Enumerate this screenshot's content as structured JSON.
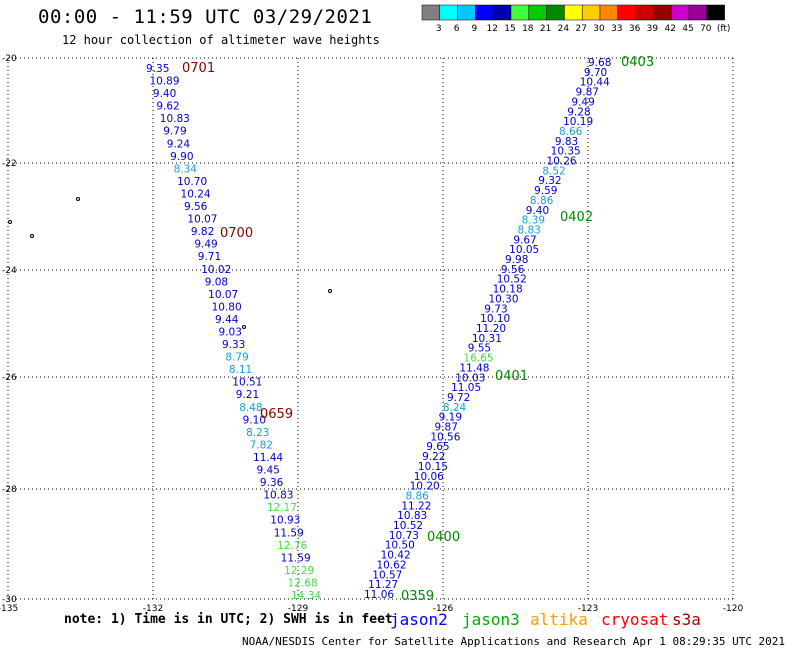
{
  "title": "00:00 - 11:59 UTC 03/29/2021",
  "subtitle": "12 hour collection of altimeter wave heights",
  "note": "note: 1) Time is in UTC; 2) SWH is in feet",
  "credit": "NOAA/NESDIS Center for Satellite Applications and Research    Apr  1 08:29:35 UTC 2021",
  "satellites": [
    {
      "name": "jason2",
      "color": "#0000ff"
    },
    {
      "name": "jason3",
      "color": "#00aa00"
    },
    {
      "name": "altika",
      "color": "#ff9900"
    },
    {
      "name": "cryosat",
      "color": "#ff0000"
    },
    {
      "name": "s3a",
      "color": "#aa0000"
    }
  ],
  "colorbar": {
    "colors": [
      "#808080",
      "#00ffff",
      "#00c8ff",
      "#0000ff",
      "#0000b0",
      "#40ff40",
      "#00cc00",
      "#008800",
      "#ffff00",
      "#ffcc00",
      "#ff8800",
      "#ff0000",
      "#cc0000",
      "#990000",
      "#cc00cc",
      "#990099",
      "#000000"
    ],
    "labels": [
      "3",
      "6",
      "9",
      "12",
      "15",
      "18",
      "21",
      "24",
      "27",
      "30",
      "33",
      "36",
      "39",
      "42",
      "45",
      "70",
      "(ft)"
    ]
  },
  "axes": {
    "lon_ticks": [
      "-135",
      "-132",
      "-129",
      "-126",
      "-123",
      "-120"
    ],
    "lat_ticks": [
      "-20",
      "-22",
      "-24",
      "-26",
      "-28",
      "-30"
    ]
  },
  "tracks": [
    {
      "name": "cryosat-track",
      "points": [
        {
          "v": "9.35",
          "c": "#0000cc"
        },
        {
          "v": "10.89",
          "c": "#0000cc"
        },
        {
          "v": "9.40",
          "c": "#0000cc"
        },
        {
          "v": "9.62",
          "c": "#0000cc"
        },
        {
          "v": "10.83",
          "c": "#0000cc"
        },
        {
          "v": "9.79",
          "c": "#0000cc"
        },
        {
          "v": "9.24",
          "c": "#0000cc"
        },
        {
          "v": "9.90",
          "c": "#0000cc"
        },
        {
          "v": "8.34",
          "c": "#1aa0d0"
        },
        {
          "v": "10.70",
          "c": "#0000cc"
        },
        {
          "v": "10.24",
          "c": "#0000cc"
        },
        {
          "v": "9.56",
          "c": "#0000cc"
        },
        {
          "v": "10.07",
          "c": "#0000cc"
        },
        {
          "v": "9.82",
          "c": "#0000cc"
        },
        {
          "v": "9.49",
          "c": "#0000cc"
        },
        {
          "v": "9.71",
          "c": "#0000cc"
        },
        {
          "v": "10.02",
          "c": "#0000cc"
        },
        {
          "v": "9.08",
          "c": "#0000cc"
        },
        {
          "v": "10.07",
          "c": "#0000cc"
        },
        {
          "v": "10.80",
          "c": "#0000cc"
        },
        {
          "v": "9.44",
          "c": "#0000cc"
        },
        {
          "v": "9.03",
          "c": "#0000cc"
        },
        {
          "v": "9.33",
          "c": "#0000cc"
        },
        {
          "v": "8.79",
          "c": "#1aa0d0"
        },
        {
          "v": "8.11",
          "c": "#1aa0d0"
        },
        {
          "v": "10.51",
          "c": "#0000cc"
        },
        {
          "v": "9.21",
          "c": "#0000cc"
        },
        {
          "v": "8.48",
          "c": "#1aa0d0"
        },
        {
          "v": "9.10",
          "c": "#0000cc"
        },
        {
          "v": "8.23",
          "c": "#1aa0d0"
        },
        {
          "v": "7.82",
          "c": "#1aa0d0"
        },
        {
          "v": "11.44",
          "c": "#0000cc"
        },
        {
          "v": "9.45",
          "c": "#0000cc"
        },
        {
          "v": "9.36",
          "c": "#0000cc"
        },
        {
          "v": "10.83",
          "c": "#0000cc"
        },
        {
          "v": "12.17",
          "c": "#44dd44"
        },
        {
          "v": "10.93",
          "c": "#0000cc"
        },
        {
          "v": "11.59",
          "c": "#0000cc"
        },
        {
          "v": "12.76",
          "c": "#44dd44"
        },
        {
          "v": "11.59",
          "c": "#0000cc"
        },
        {
          "v": "12.29",
          "c": "#44dd44"
        },
        {
          "v": "12.68",
          "c": "#44dd44"
        },
        {
          "v": "14.34",
          "c": "#44dd44"
        }
      ],
      "times": [
        {
          "t": "0701",
          "color": "#8b0000"
        },
        {
          "t": "0700",
          "color": "#8b0000"
        },
        {
          "t": "0659",
          "color": "#8b0000"
        }
      ]
    },
    {
      "name": "jason3-track",
      "points": [
        {
          "v": "9.68",
          "c": "#0000cc"
        },
        {
          "v": "9.70",
          "c": "#0000cc"
        },
        {
          "v": "10.44",
          "c": "#0000cc"
        },
        {
          "v": "9.87",
          "c": "#0000cc"
        },
        {
          "v": "9.49",
          "c": "#0000cc"
        },
        {
          "v": "9.28",
          "c": "#0000cc"
        },
        {
          "v": "10.19",
          "c": "#0000cc"
        },
        {
          "v": "8.66",
          "c": "#1aa0d0"
        },
        {
          "v": "9.83",
          "c": "#0000cc"
        },
        {
          "v": "10.35",
          "c": "#0000cc"
        },
        {
          "v": "10.26",
          "c": "#0000cc"
        },
        {
          "v": "8.52",
          "c": "#1aa0d0"
        },
        {
          "v": "9.32",
          "c": "#0000cc"
        },
        {
          "v": "9.59",
          "c": "#0000cc"
        },
        {
          "v": "8.86",
          "c": "#1aa0d0"
        },
        {
          "v": "9.40",
          "c": "#0000cc"
        },
        {
          "v": "8.39",
          "c": "#1aa0d0"
        },
        {
          "v": "8.83",
          "c": "#1aa0d0"
        },
        {
          "v": "9.67",
          "c": "#0000cc"
        },
        {
          "v": "10.05",
          "c": "#0000cc"
        },
        {
          "v": "9.98",
          "c": "#0000cc"
        },
        {
          "v": "9.56",
          "c": "#0000cc"
        },
        {
          "v": "10.52",
          "c": "#0000cc"
        },
        {
          "v": "10.18",
          "c": "#0000cc"
        },
        {
          "v": "10.30",
          "c": "#0000cc"
        },
        {
          "v": "9.73",
          "c": "#0000cc"
        },
        {
          "v": "10.10",
          "c": "#0000cc"
        },
        {
          "v": "11.20",
          "c": "#0000cc"
        },
        {
          "v": "10.31",
          "c": "#0000cc"
        },
        {
          "v": "9.55",
          "c": "#0000cc"
        },
        {
          "v": "16.65",
          "c": "#44dd44"
        },
        {
          "v": "11.48",
          "c": "#0000cc"
        },
        {
          "v": "10.03",
          "c": "#0000cc"
        },
        {
          "v": "11.05",
          "c": "#0000cc"
        },
        {
          "v": "9.72",
          "c": "#0000cc"
        },
        {
          "v": "8.24",
          "c": "#1aa0d0"
        },
        {
          "v": "9.19",
          "c": "#0000cc"
        },
        {
          "v": "9.87",
          "c": "#0000cc"
        },
        {
          "v": "10.56",
          "c": "#0000cc"
        },
        {
          "v": "9.65",
          "c": "#0000cc"
        },
        {
          "v": "9.22",
          "c": "#0000cc"
        },
        {
          "v": "10.15",
          "c": "#0000cc"
        },
        {
          "v": "10.06",
          "c": "#0000cc"
        },
        {
          "v": "10.20",
          "c": "#0000cc"
        },
        {
          "v": "8.86",
          "c": "#1aa0d0"
        },
        {
          "v": "11.22",
          "c": "#0000cc"
        },
        {
          "v": "10.83",
          "c": "#0000cc"
        },
        {
          "v": "10.52",
          "c": "#0000cc"
        },
        {
          "v": "10.73",
          "c": "#0000cc"
        },
        {
          "v": "10.50",
          "c": "#0000cc"
        },
        {
          "v": "10.42",
          "c": "#0000cc"
        },
        {
          "v": "10.62",
          "c": "#0000cc"
        },
        {
          "v": "10.57",
          "c": "#0000cc"
        },
        {
          "v": "11.27",
          "c": "#0000cc"
        },
        {
          "v": "11.06",
          "c": "#0000cc"
        }
      ],
      "times": [
        {
          "t": "0403",
          "color": "#008800"
        },
        {
          "t": "0402",
          "color": "#008800"
        },
        {
          "t": "0401",
          "color": "#008800"
        },
        {
          "t": "0400",
          "color": "#008800"
        },
        {
          "t": "0359",
          "color": "#008800"
        }
      ]
    }
  ]
}
